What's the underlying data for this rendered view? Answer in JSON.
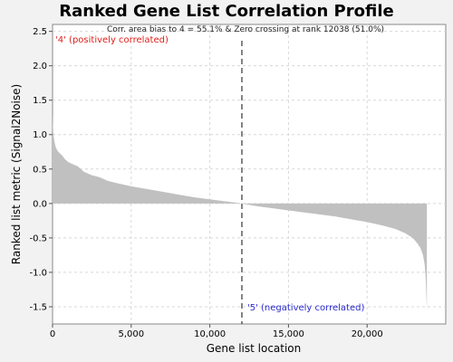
{
  "chart_data": {
    "type": "area",
    "title": "Ranked Gene List Correlation Profile",
    "xlabel": "Gene list location",
    "ylabel": "Ranked list metric (Signal2Noise)",
    "xlim": [
      0,
      25000
    ],
    "ylim": [
      -1.75,
      2.6
    ],
    "xticks": [
      0,
      5000,
      10000,
      15000,
      20000
    ],
    "xtick_labels": [
      "0",
      "5,000",
      "10,000",
      "15,000",
      "20,000"
    ],
    "yticks": [
      2.5,
      2.0,
      1.5,
      1.0,
      0.5,
      0.0,
      -0.5,
      -1.0,
      -1.5
    ],
    "ytick_labels": [
      "2.5",
      "2.0",
      "1.5",
      "1.0",
      "0.5",
      "0.0",
      "-0.5",
      "-1.0",
      "-1.5"
    ],
    "grid": true,
    "fill_color": "#c0c0c0",
    "zero_crossing_rank": 12038,
    "annotation": "Corr. area bias to 4 = 55.1% & Zero crossing at rank 12038 (51.0%)",
    "positive_label": "'4' (positively correlated)",
    "negative_label": "'5' (negatively correlated)",
    "series": [
      {
        "x": [
          0,
          20,
          60,
          120,
          200,
          300,
          450,
          600,
          800,
          1000,
          1300,
          1600,
          2000,
          2500,
          3000,
          3500,
          4000,
          5000,
          6000,
          7000,
          8000,
          9000,
          10000,
          11000,
          11600,
          12038,
          12500,
          13000,
          14000,
          15000,
          16000,
          17000,
          18000,
          19000,
          20000,
          21000,
          21800,
          22400,
          22900,
          23200,
          23400,
          23550,
          23650,
          23720,
          23760,
          23800
        ],
        "y": [
          1.32,
          1.15,
          1.0,
          0.9,
          0.82,
          0.77,
          0.73,
          0.7,
          0.64,
          0.6,
          0.57,
          0.54,
          0.46,
          0.41,
          0.38,
          0.33,
          0.3,
          0.25,
          0.21,
          0.17,
          0.13,
          0.09,
          0.06,
          0.03,
          0.015,
          0.0,
          -0.02,
          -0.04,
          -0.07,
          -0.1,
          -0.13,
          -0.16,
          -0.19,
          -0.23,
          -0.27,
          -0.32,
          -0.37,
          -0.43,
          -0.5,
          -0.58,
          -0.65,
          -0.75,
          -0.87,
          -1.05,
          -1.3,
          -1.55
        ]
      }
    ]
  }
}
